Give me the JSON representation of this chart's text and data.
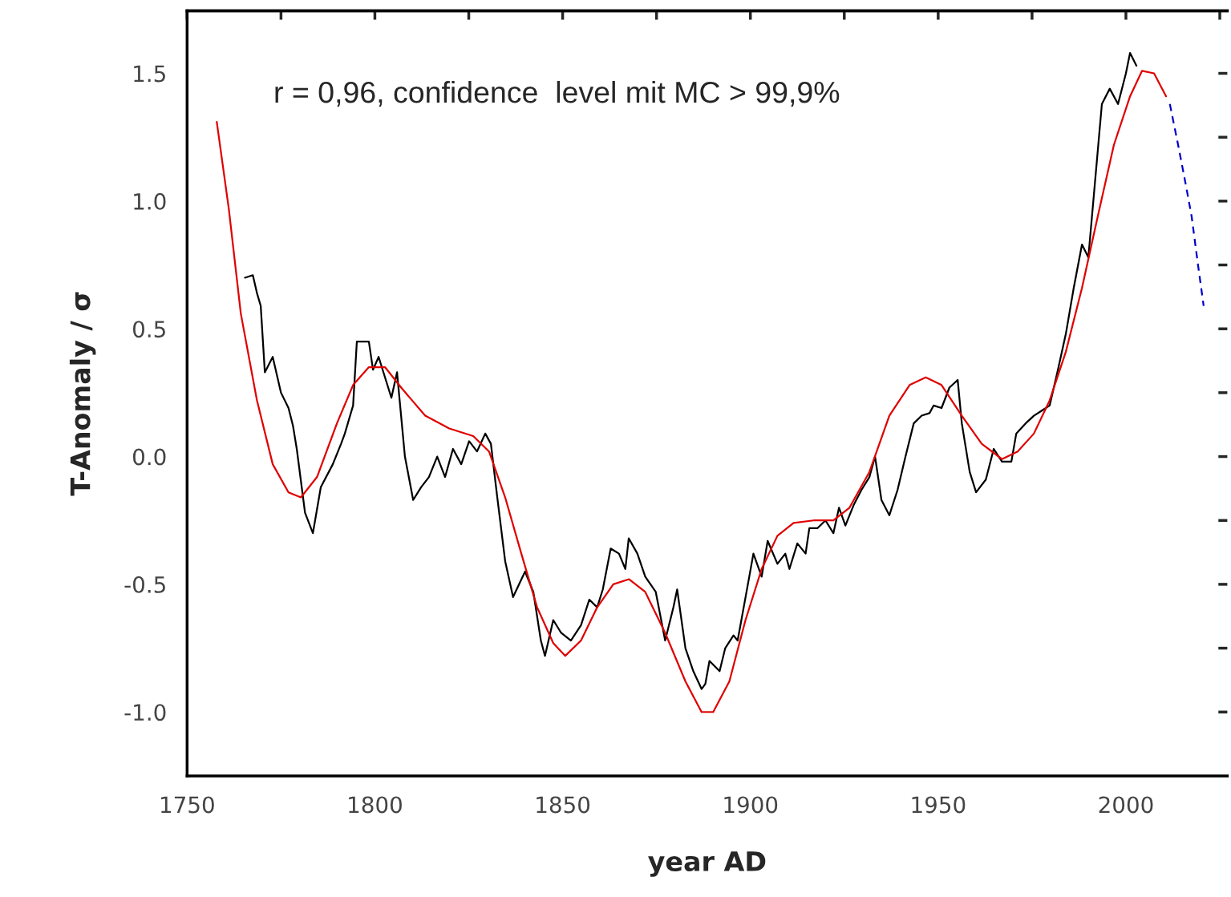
{
  "chart_data": {
    "type": "line",
    "xlabel": "year AD",
    "ylabel": "T-Anomaly / σ",
    "annotations": [
      "r = 0,96, confidence  level mit MC > 99,9%"
    ],
    "xlim": [
      1750,
      2027
    ],
    "ylim": [
      -1.25,
      1.745
    ],
    "xticks": [
      1750,
      {
        "value": 1775,
        "label": null
      },
      1800,
      {
        "value": 1825,
        "label": null
      },
      1850,
      {
        "value": 1875,
        "label": null
      },
      1900,
      {
        "value": 1925,
        "label": null
      },
      1950,
      {
        "value": 1975,
        "label": null
      },
      2000,
      {
        "value": 2025,
        "label": null
      }
    ],
    "yticks": [
      {
        "value": -1.0,
        "label": "-1.0"
      },
      {
        "value": -0.75,
        "label": null
      },
      {
        "value": -0.5,
        "label": "-0.5"
      },
      {
        "value": -0.25,
        "label": null
      },
      {
        "value": 0.0,
        "label": "0.0"
      },
      {
        "value": 0.25,
        "label": null
      },
      {
        "value": 0.5,
        "label": "0.5"
      },
      {
        "value": 0.75,
        "label": null
      },
      {
        "value": 1.0,
        "label": "1.0"
      },
      {
        "value": 1.25,
        "label": null
      },
      {
        "value": 1.5,
        "label": "1.5"
      }
    ],
    "grid": false,
    "series": [
      {
        "color": "#000000",
        "line_style": "solid",
        "x": [
          1765.4,
          1767.5,
          1768.6,
          1769.6,
          1770.7,
          1772.8,
          1775,
          1777,
          1778.2,
          1779.2,
          1781.4,
          1783.5,
          1785.6,
          1788.8,
          1791,
          1792,
          1794.2,
          1795.2,
          1798.4,
          1799.5,
          1801,
          1802.7,
          1804.4,
          1805.9,
          1808,
          1810.2,
          1812.3,
          1814.4,
          1816.6,
          1818.7,
          1820.8,
          1823,
          1825.1,
          1827.2,
          1829.4,
          1830.9,
          1832.6,
          1834.7,
          1836.8,
          1840,
          1842.2,
          1844.2,
          1845.3,
          1847.5,
          1849.6,
          1852.2,
          1854.9,
          1857.1,
          1859.2,
          1860.7,
          1862.8,
          1865,
          1866.7,
          1867.6,
          1869.9,
          1872,
          1874.8,
          1877.3,
          1879.5,
          1880.5,
          1882.7,
          1884.8,
          1887,
          1888,
          1889.1,
          1891.8,
          1893.3,
          1895.5,
          1896.6,
          1897.6,
          1899.7,
          1900.8,
          1903,
          1904.6,
          1907.2,
          1909.3,
          1910.4,
          1912.5,
          1914.7,
          1915.7,
          1917.9,
          1920,
          1922.1,
          1923.6,
          1925.3,
          1927.5,
          1929.6,
          1931.7,
          1933.2,
          1934.9,
          1937,
          1939.2,
          1941.3,
          1943.5,
          1945.6,
          1947.7,
          1948.8,
          1950.9,
          1953,
          1955.2,
          1956.3,
          1958.4,
          1960.1,
          1962.7,
          1964.8,
          1967,
          1969.5,
          1970.8,
          1973.3,
          1975.5,
          1977.6,
          1979.7,
          1981.9,
          1984,
          1986.1,
          1988.3,
          1990,
          1991.5,
          1993.6,
          1995.7,
          1997.9,
          2000,
          2001.1,
          2002.8
        ],
        "values": [
          0.7,
          0.71,
          0.64,
          0.59,
          0.33,
          0.39,
          0.25,
          0.19,
          0.12,
          0.03,
          -0.22,
          -0.3,
          -0.12,
          -0.03,
          0.05,
          0.09,
          0.2,
          0.45,
          0.45,
          0.34,
          0.39,
          0.31,
          0.23,
          0.33,
          0.0,
          -0.17,
          -0.12,
          -0.08,
          0.0,
          -0.08,
          0.03,
          -0.03,
          0.06,
          0.02,
          0.09,
          0.05,
          -0.16,
          -0.41,
          -0.55,
          -0.45,
          -0.53,
          -0.72,
          -0.78,
          -0.64,
          -0.69,
          -0.72,
          -0.66,
          -0.56,
          -0.59,
          -0.52,
          -0.36,
          -0.38,
          -0.44,
          -0.32,
          -0.38,
          -0.47,
          -0.53,
          -0.72,
          -0.59,
          -0.52,
          -0.75,
          -0.84,
          -0.91,
          -0.89,
          -0.8,
          -0.84,
          -0.75,
          -0.7,
          -0.72,
          -0.64,
          -0.47,
          -0.38,
          -0.47,
          -0.33,
          -0.42,
          -0.38,
          -0.44,
          -0.34,
          -0.38,
          -0.28,
          -0.28,
          -0.25,
          -0.3,
          -0.2,
          -0.27,
          -0.19,
          -0.13,
          -0.08,
          0.0,
          -0.17,
          -0.23,
          -0.13,
          0.0,
          0.13,
          0.16,
          0.17,
          0.2,
          0.19,
          0.27,
          0.3,
          0.13,
          -0.06,
          -0.14,
          -0.09,
          0.03,
          -0.02,
          -0.02,
          0.09,
          0.13,
          0.16,
          0.18,
          0.2,
          0.34,
          0.48,
          0.66,
          0.83,
          0.78,
          1.03,
          1.38,
          1.44,
          1.38,
          1.5,
          1.58,
          1.53
        ]
      },
      {
        "color": "#e00000",
        "line_style": "solid",
        "x": [
          1757.9,
          1761.1,
          1764.3,
          1768.6,
          1772.8,
          1777,
          1780.3,
          1784.6,
          1789.9,
          1794.2,
          1798.4,
          1802.7,
          1807,
          1813.4,
          1819.8,
          1826.2,
          1830.4,
          1834.7,
          1839,
          1843.2,
          1847.5,
          1850.7,
          1854.9,
          1859.2,
          1863.5,
          1867.7,
          1872,
          1877.3,
          1882.7,
          1887,
          1890.1,
          1894.4,
          1898.7,
          1903,
          1907.2,
          1911.5,
          1916.8,
          1922.1,
          1926.4,
          1931.7,
          1937,
          1942.4,
          1946.7,
          1950.9,
          1956.3,
          1961.6,
          1967,
          1971.2,
          1975.5,
          1979.7,
          1984,
          1988.3,
          1992.5,
          1996.8,
          2001.1,
          2004.3,
          2007.5,
          2010.7
        ],
        "values": [
          1.31,
          0.97,
          0.56,
          0.22,
          -0.03,
          -0.14,
          -0.16,
          -0.08,
          0.13,
          0.28,
          0.35,
          0.35,
          0.27,
          0.16,
          0.11,
          0.08,
          0.02,
          -0.16,
          -0.38,
          -0.59,
          -0.73,
          -0.78,
          -0.72,
          -0.59,
          -0.5,
          -0.48,
          -0.53,
          -0.69,
          -0.88,
          -1.0,
          -1.0,
          -0.88,
          -0.64,
          -0.44,
          -0.31,
          -0.26,
          -0.25,
          -0.25,
          -0.2,
          -0.06,
          0.16,
          0.28,
          0.31,
          0.28,
          0.16,
          0.05,
          -0.01,
          0.02,
          0.09,
          0.22,
          0.41,
          0.66,
          0.94,
          1.22,
          1.41,
          1.51,
          1.5,
          1.41
        ]
      },
      {
        "color": "#0000cc",
        "line_style": "dashed",
        "x": [
          2011.7,
          2013.9,
          2016,
          2017.5,
          2019.2,
          2020.7
        ],
        "values": [
          1.38,
          1.22,
          1.06,
          0.94,
          0.75,
          0.59
        ]
      }
    ]
  }
}
